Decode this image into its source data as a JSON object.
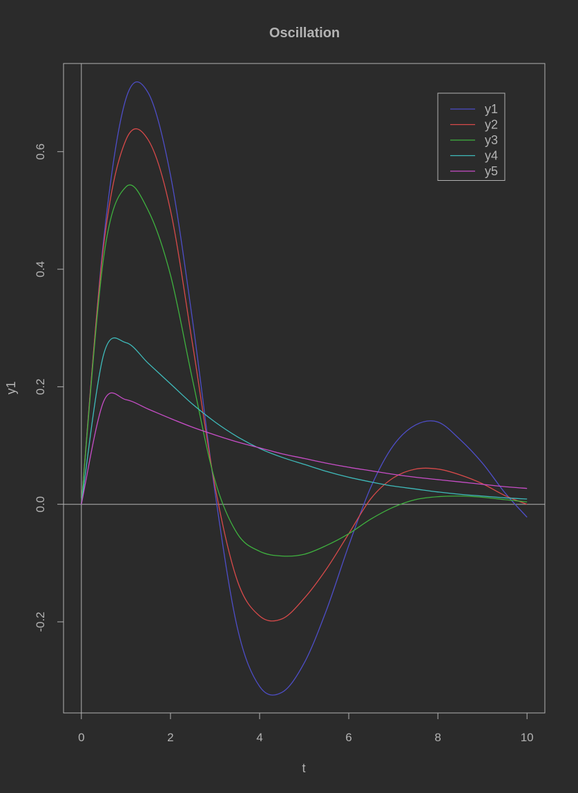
{
  "chart_data": {
    "type": "line",
    "title": "Oscillation",
    "xlabel": "t",
    "ylabel": "y1",
    "xlim": [
      -0.4,
      10.4
    ],
    "ylim": [
      -0.355,
      0.75
    ],
    "x_ticks": [
      0,
      2,
      4,
      6,
      8,
      10
    ],
    "x_tick_labels": [
      "0",
      "2",
      "4",
      "6",
      "8",
      "10"
    ],
    "y_ticks": [
      -0.2,
      0.0,
      0.2,
      0.4,
      0.6
    ],
    "y_tick_labels": [
      "-0.2",
      "0.0",
      "0.2",
      "0.4",
      "0.6"
    ],
    "grid": false,
    "reference_lines": {
      "horizontal": 0.0,
      "vertical": 0
    },
    "legend_position": "top-right",
    "background": "#2b2b2b",
    "foreground": "#b3b3b3",
    "x": [
      0,
      0.5,
      1,
      1.5,
      2,
      2.5,
      3,
      3.5,
      4,
      4.5,
      5,
      5.5,
      6,
      6.5,
      7,
      7.5,
      8,
      8.5,
      9,
      9.5,
      10
    ],
    "series": [
      {
        "name": "y1",
        "color": "#4e4ec9",
        "values": [
          0,
          0.45,
          0.69,
          0.7,
          0.56,
          0.31,
          0.02,
          -0.21,
          -0.31,
          -0.32,
          -0.27,
          -0.18,
          -0.07,
          0.03,
          0.1,
          0.135,
          0.14,
          0.11,
          0.07,
          0.02,
          -0.022
        ]
      },
      {
        "name": "y2",
        "color": "#d94a4a",
        "values": [
          0,
          0.44,
          0.62,
          0.62,
          0.5,
          0.27,
          0.03,
          -0.13,
          -0.19,
          -0.195,
          -0.16,
          -0.11,
          -0.05,
          0.01,
          0.045,
          0.06,
          0.06,
          0.05,
          0.035,
          0.015,
          0.0
        ]
      },
      {
        "name": "y3",
        "color": "#3fb23f",
        "values": [
          0,
          0.42,
          0.54,
          0.5,
          0.39,
          0.21,
          0.04,
          -0.05,
          -0.08,
          -0.088,
          -0.085,
          -0.07,
          -0.05,
          -0.025,
          -0.005,
          0.008,
          0.013,
          0.014,
          0.012,
          0.008,
          0.004
        ]
      },
      {
        "name": "y4",
        "color": "#3fbcbc",
        "values": [
          0,
          0.255,
          0.275,
          0.24,
          0.205,
          0.17,
          0.14,
          0.115,
          0.095,
          0.08,
          0.068,
          0.056,
          0.046,
          0.038,
          0.031,
          0.026,
          0.021,
          0.017,
          0.014,
          0.011,
          0.009
        ]
      },
      {
        "name": "y5",
        "color": "#c94ec9",
        "values": [
          0,
          0.175,
          0.178,
          0.162,
          0.146,
          0.131,
          0.118,
          0.106,
          0.096,
          0.086,
          0.078,
          0.07,
          0.063,
          0.057,
          0.051,
          0.046,
          0.042,
          0.038,
          0.034,
          0.03,
          0.027
        ]
      }
    ]
  }
}
